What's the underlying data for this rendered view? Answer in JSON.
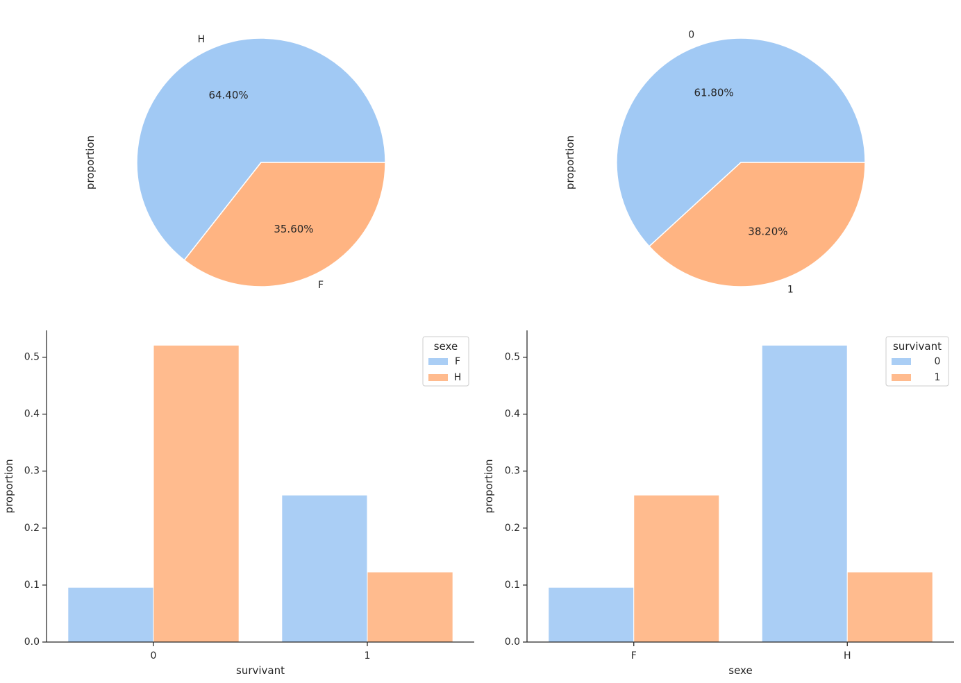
{
  "chart_data": [
    {
      "type": "pie",
      "ylabel": "proportion",
      "labels": [
        "H",
        "F"
      ],
      "values": [
        64.4,
        35.6
      ],
      "value_labels": [
        "64.40%",
        "35.60%"
      ],
      "colors": [
        "#a1c9f4",
        "#ffb482"
      ]
    },
    {
      "type": "pie",
      "ylabel": "proportion",
      "labels": [
        "0",
        "1"
      ],
      "values": [
        61.8,
        38.2
      ],
      "value_labels": [
        "61.80%",
        "38.20%"
      ],
      "colors": [
        "#a1c9f4",
        "#ffb482"
      ]
    },
    {
      "type": "bar",
      "xlabel": "survivant",
      "ylabel": "proportion",
      "categories": [
        "0",
        "1"
      ],
      "series": [
        {
          "name": "F",
          "values": [
            0.096,
            0.258
          ],
          "color": "#a1c9f4"
        },
        {
          "name": "H",
          "values": [
            0.521,
            0.123
          ],
          "color": "#ffb482"
        }
      ],
      "ylim": [
        0,
        0.547
      ],
      "yticks": [
        "0.0",
        "0.1",
        "0.2",
        "0.3",
        "0.4",
        "0.5"
      ],
      "legend": {
        "title": "sexe",
        "placement": "top-right"
      }
    },
    {
      "type": "bar",
      "xlabel": "sexe",
      "ylabel": "proportion",
      "categories": [
        "F",
        "H"
      ],
      "series": [
        {
          "name": "0",
          "values": [
            0.096,
            0.521
          ],
          "color": "#a1c9f4"
        },
        {
          "name": "1",
          "values": [
            0.258,
            0.123
          ],
          "color": "#ffb482"
        }
      ],
      "ylim": [
        0,
        0.547
      ],
      "yticks": [
        "0.0",
        "0.1",
        "0.2",
        "0.3",
        "0.4",
        "0.5"
      ],
      "legend": {
        "title": "survivant",
        "placement": "top-right"
      }
    }
  ]
}
